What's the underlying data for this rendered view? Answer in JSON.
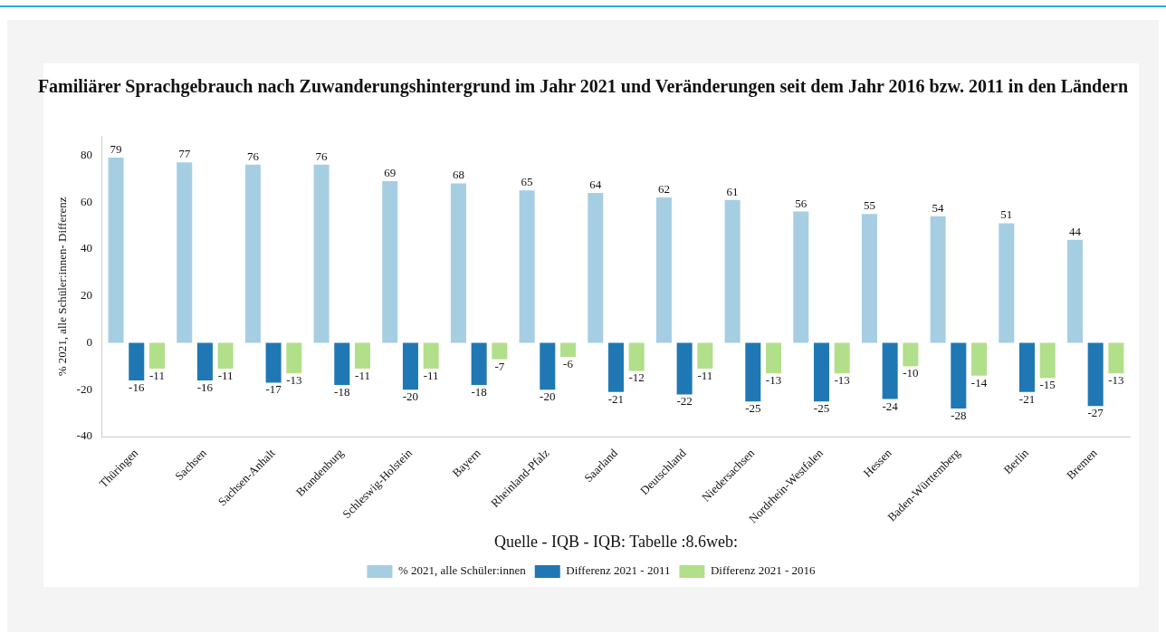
{
  "chart_data": {
    "type": "bar",
    "title": "Familiärer Sprachgebrauch nach Zuwanderungshintergrund im Jahr 2021 und Veränderungen seit dem Jahr 2016 bzw. 2011 in den Ländern",
    "xlabel": "Quelle - IQB - IQB: Tabelle :8.6web:",
    "ylabel": "% 2021, alle Schüler:innen- Differenz",
    "categories": [
      "Thüringen",
      "Sachsen",
      "Sachsen-Anhalt",
      "Brandenburg",
      "Schleswig-Holstein",
      "Bayern",
      "Rheinland-Pfalz",
      "Saarland",
      "Deutschland",
      "Niedersachsen",
      "Nordrhein-Westfalen",
      "Hessen",
      "Baden-Württemberg",
      "Berlin",
      "Bremen"
    ],
    "series": [
      {
        "name": "% 2021, alle Schüler:innen",
        "color": "#a6cee3",
        "values": [
          79,
          77,
          76,
          76,
          69,
          68,
          65,
          64,
          62,
          61,
          56,
          55,
          54,
          51,
          44
        ]
      },
      {
        "name": "Differenz 2021 - 2011",
        "color": "#1f78b4",
        "values": [
          -16,
          -16,
          -17,
          -18,
          -20,
          -18,
          -20,
          -21,
          -22,
          -25,
          -25,
          -24,
          -28,
          -21,
          -27
        ]
      },
      {
        "name": "Differenz 2021 - 2016",
        "color": "#b2df8a",
        "values": [
          -11,
          -11,
          -13,
          -11,
          -11,
          -7,
          -6,
          -12,
          -11,
          -13,
          -13,
          -10,
          -14,
          -15,
          -13
        ]
      }
    ],
    "ylim": [
      -40,
      88
    ],
    "yticks": [
      -40,
      -20,
      0,
      20,
      40,
      60,
      80
    ],
    "grid": false,
    "legend": "bottom",
    "data_labels": true
  }
}
